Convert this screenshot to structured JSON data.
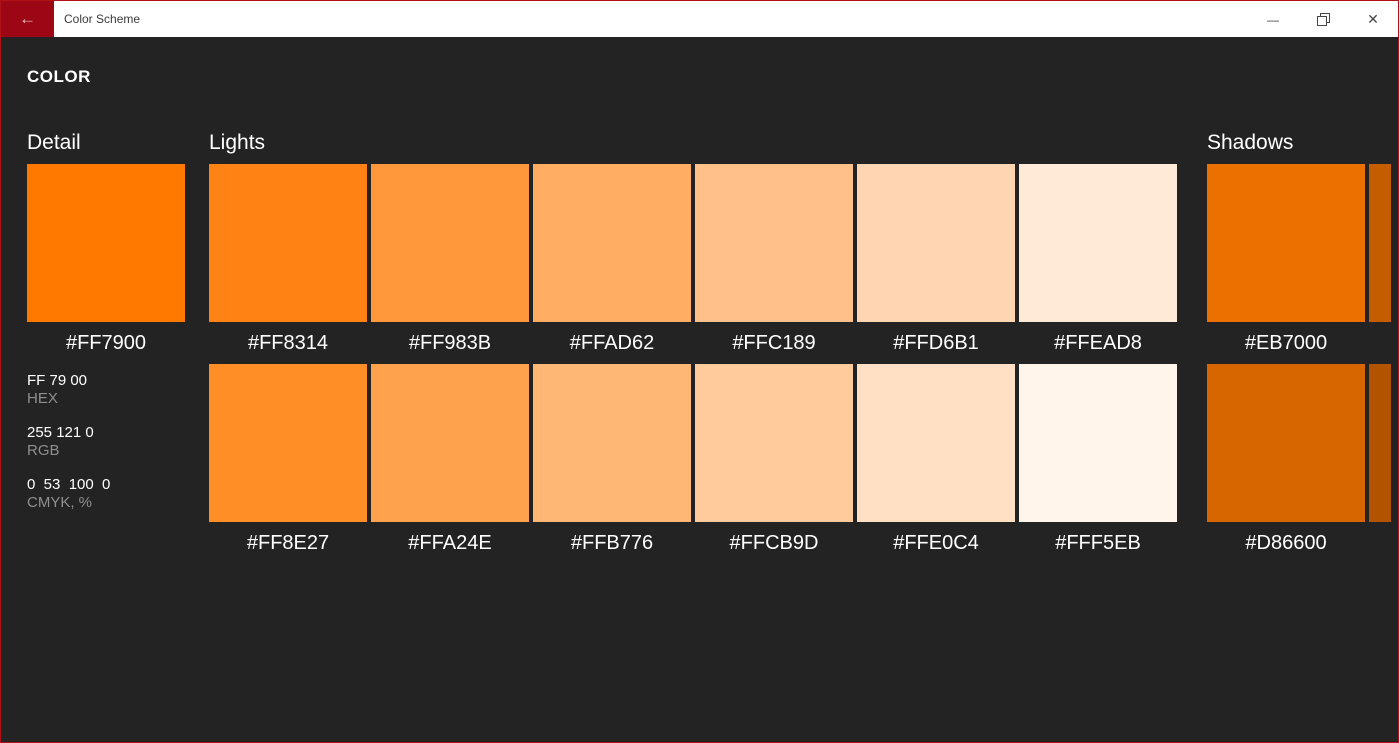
{
  "titlebar": {
    "back_icon": "←",
    "title": "Color Scheme",
    "minimize_icon": "—",
    "close_icon": "✕"
  },
  "theme": {
    "window_border": "#AF1116",
    "titlebar_bg": "#FFFFFF",
    "titlebar_text": "#3B3B3B",
    "back_button_bg": "#9C0615",
    "back_arrow_color": "#E9C0C4",
    "content_bg": "#232323",
    "text_primary": "#FFFFFF",
    "text_secondary": "#8F8F8F"
  },
  "palette": {
    "heading": "COLOR",
    "detail": {
      "title": "Detail",
      "swatch": {
        "label": "#FF7900",
        "color": "#FF7900"
      },
      "values": [
        {
          "value": "FF 79 00",
          "label": "HEX"
        },
        {
          "value": "255 121 0",
          "label": "RGB"
        },
        {
          "value": "0  53  100  0",
          "label": "CMYK, %"
        }
      ]
    },
    "lights": {
      "title": "Lights",
      "rows": [
        [
          {
            "label": "#FF8314",
            "color": "#FF8314"
          },
          {
            "label": "#FF983B",
            "color": "#FF983B"
          },
          {
            "label": "#FFAD62",
            "color": "#FFAD62"
          },
          {
            "label": "#FFC189",
            "color": "#FFC189"
          },
          {
            "label": "#FFD6B1",
            "color": "#FFD6B1"
          },
          {
            "label": "#FFEAD8",
            "color": "#FFEAD8"
          }
        ],
        [
          {
            "label": "#FF8E27",
            "color": "#FF8E27"
          },
          {
            "label": "#FFA24E",
            "color": "#FFA24E"
          },
          {
            "label": "#FFB776",
            "color": "#FFB776"
          },
          {
            "label": "#FFCB9D",
            "color": "#FFCB9D"
          },
          {
            "label": "#FFE0C4",
            "color": "#FFE0C4"
          },
          {
            "label": "#FFF5EB",
            "color": "#FFF5EB"
          }
        ]
      ]
    },
    "shadows": {
      "title": "Shadows",
      "rows": [
        {
          "swatch": {
            "label": "#EB7000",
            "color": "#EB7000"
          },
          "partial": {
            "color": "#C45C00"
          }
        },
        {
          "swatch": {
            "label": "#D86600",
            "color": "#D86600"
          },
          "partial": {
            "color": "#B25300"
          }
        }
      ]
    }
  }
}
